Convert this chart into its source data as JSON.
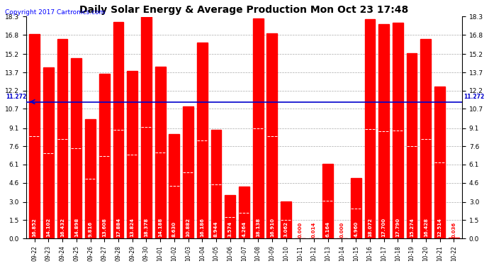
{
  "title": "Daily Solar Energy & Average Production Mon Oct 23 17:48",
  "copyright": "Copyright 2017 Cartronics.com",
  "average": 11.272,
  "bar_color": "#FF0000",
  "average_line_color": "#0000CC",
  "background_color": "#FFFFFF",
  "plot_bg_color": "#FFFFFF",
  "grid_color": "#AAAAAA",
  "categories": [
    "09-22",
    "09-23",
    "09-24",
    "09-25",
    "09-26",
    "09-27",
    "09-28",
    "09-29",
    "09-30",
    "10-01",
    "10-02",
    "10-03",
    "10-04",
    "10-05",
    "10-06",
    "10-07",
    "10-08",
    "10-09",
    "10-10",
    "10-11",
    "10-12",
    "10-13",
    "10-14",
    "10-15",
    "10-16",
    "10-17",
    "10-18",
    "10-19",
    "10-20",
    "10-21",
    "10-22"
  ],
  "values": [
    16.852,
    14.102,
    16.432,
    14.898,
    9.816,
    13.608,
    17.884,
    13.824,
    18.378,
    14.188,
    8.63,
    10.882,
    16.186,
    8.944,
    3.574,
    4.264,
    18.138,
    16.91,
    3.062,
    0.0,
    0.014,
    6.164,
    0.0,
    4.96,
    18.072,
    17.7,
    17.79,
    15.274,
    16.428,
    12.514,
    0.036
  ],
  "yticks": [
    0.0,
    1.5,
    3.0,
    4.6,
    6.1,
    7.6,
    9.1,
    10.7,
    12.2,
    13.7,
    15.2,
    16.8,
    18.3
  ],
  "legend_avg_color": "#0000CC",
  "legend_daily_color": "#FF0000",
  "legend_bg_color": "#000080",
  "avg_label": "11.272",
  "title_fontsize": 10,
  "copyright_fontsize": 6.5,
  "bar_value_fontsize": 5.0,
  "ytick_fontsize": 6.5,
  "xtick_fontsize": 5.5,
  "ymax": 18.3,
  "ymin": 0.0
}
